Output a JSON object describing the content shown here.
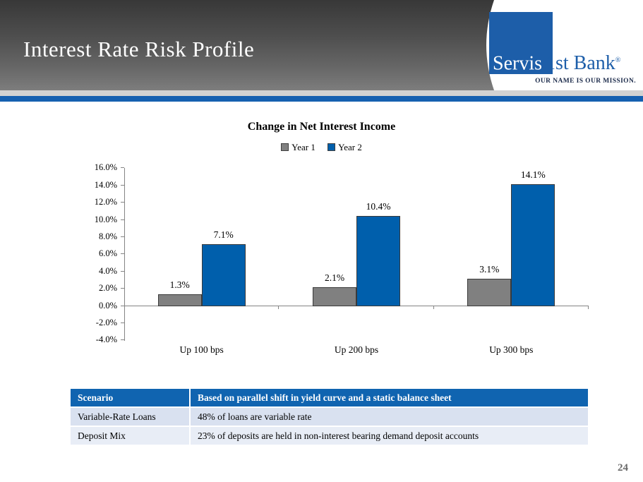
{
  "slide": {
    "title": "Interest Rate Risk Profile",
    "page_number": "24"
  },
  "logo": {
    "square_text": "Servis",
    "rest_text": "1st Bank",
    "registered_mark": "®",
    "tagline": "OUR NAME IS OUR MISSION.",
    "brand_blue": "#1d5ea9"
  },
  "chart_data": {
    "type": "bar",
    "title": "Change in Net Interest Income",
    "categories": [
      "Up 100 bps",
      "Up 200 bps",
      "Up 300 bps"
    ],
    "series": [
      {
        "name": "Year 1",
        "color": "#808080",
        "values": [
          1.3,
          2.1,
          3.1
        ]
      },
      {
        "name": "Year 2",
        "color": "#005fac",
        "values": [
          7.1,
          10.4,
          14.1
        ]
      }
    ],
    "value_labels": [
      [
        "1.3%",
        "2.1%",
        "3.1%"
      ],
      [
        "7.1%",
        "10.4%",
        "14.1%"
      ]
    ],
    "ylabel": "",
    "xlabel": "",
    "ylim": [
      -4,
      16
    ],
    "ytick_labels": [
      "16.0%",
      "14.0%",
      "12.0%",
      "10.0%",
      "8.0%",
      "6.0%",
      "4.0%",
      "2.0%",
      "0.0%",
      "-2.0%",
      "-4.0%"
    ],
    "grid": false,
    "legend_position": "top-center"
  },
  "table": {
    "header": [
      "Scenario",
      "Based on parallel shift in yield curve and a static balance sheet"
    ],
    "rows": [
      [
        "Variable-Rate Loans",
        "48% of loans are variable rate"
      ],
      [
        "Deposit Mix",
        "23% of deposits are held in non-interest bearing demand deposit accounts"
      ]
    ],
    "header_bg": "#1064b0",
    "row_bgs": [
      "#d9e1f0",
      "#e8edf6"
    ]
  }
}
